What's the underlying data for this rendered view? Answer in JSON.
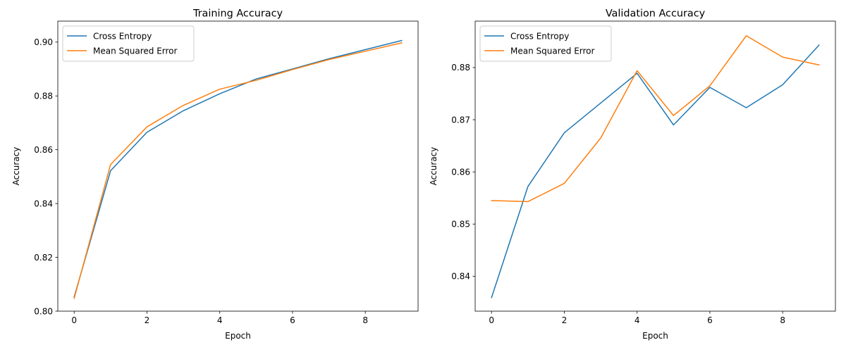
{
  "chart_data": [
    {
      "type": "line",
      "title": "Training Accuracy",
      "xlabel": "Epoch",
      "ylabel": "Accuracy",
      "xlim": [
        -0.45,
        9.45
      ],
      "ylim": [
        0.8,
        0.9078
      ],
      "xticks": [
        0,
        2,
        4,
        6,
        8
      ],
      "xtick_labels": [
        "0",
        "2",
        "4",
        "6",
        "8"
      ],
      "yticks": [
        0.8,
        0.82,
        0.84,
        0.86,
        0.88,
        0.9
      ],
      "ytick_labels": [
        "0.80",
        "0.82",
        "0.84",
        "0.86",
        "0.88",
        "0.90"
      ],
      "grid": false,
      "legend": "top-left",
      "x": [
        0,
        1,
        2,
        3,
        4,
        5,
        6,
        7,
        8,
        9
      ],
      "series": [
        {
          "name": "Cross Entropy",
          "color": "#1f77b4",
          "values": [
            0.8053,
            0.8522,
            0.8665,
            0.8745,
            0.8808,
            0.8863,
            0.89,
            0.8938,
            0.8972,
            0.9006
          ]
        },
        {
          "name": "Mean Squared Error",
          "color": "#ff7f0e",
          "values": [
            0.8048,
            0.8545,
            0.8685,
            0.8765,
            0.8825,
            0.8858,
            0.8898,
            0.8935,
            0.8966,
            0.8997
          ]
        }
      ]
    },
    {
      "type": "line",
      "title": "Validation Accuracy",
      "xlabel": "Epoch",
      "ylabel": "Accuracy",
      "xlim": [
        -0.45,
        9.45
      ],
      "ylim": [
        0.8333,
        0.8889
      ],
      "xticks": [
        0,
        2,
        4,
        6,
        8
      ],
      "xtick_labels": [
        "0",
        "2",
        "4",
        "6",
        "8"
      ],
      "yticks": [
        0.84,
        0.85,
        0.86,
        0.87,
        0.88
      ],
      "ytick_labels": [
        "0.84",
        "0.85",
        "0.86",
        "0.87",
        "0.88"
      ],
      "grid": false,
      "legend": "top-left",
      "x": [
        0,
        1,
        2,
        3,
        4,
        5,
        6,
        7,
        8,
        9
      ],
      "series": [
        {
          "name": "Cross Entropy",
          "color": "#1f77b4",
          "values": [
            0.8359,
            0.8572,
            0.8675,
            0.8732,
            0.8789,
            0.869,
            0.8762,
            0.8723,
            0.8767,
            0.8843
          ]
        },
        {
          "name": "Mean Squared Error",
          "color": "#ff7f0e",
          "values": [
            0.8545,
            0.8543,
            0.8578,
            0.8665,
            0.8794,
            0.8708,
            0.8765,
            0.8861,
            0.882,
            0.8805
          ]
        }
      ]
    }
  ]
}
